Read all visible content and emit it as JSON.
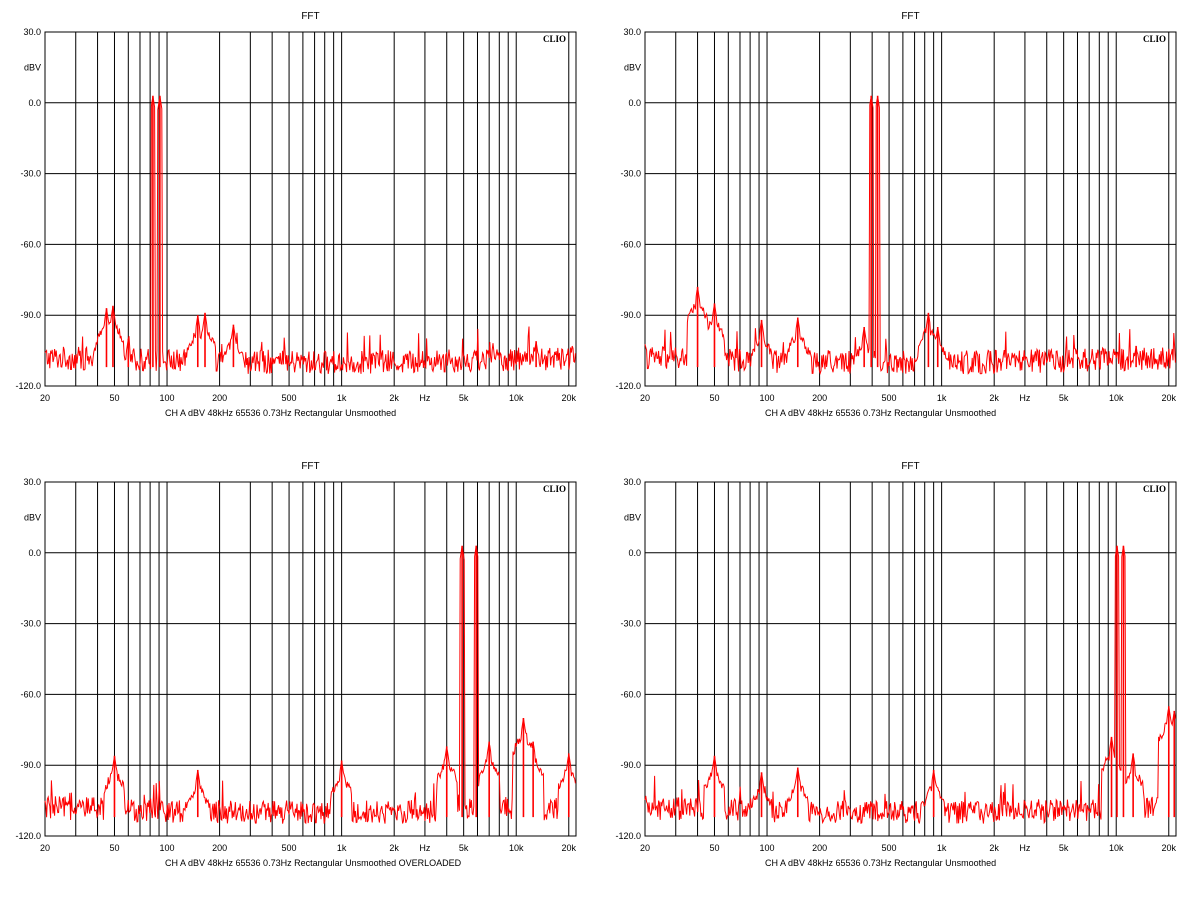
{
  "brand": "CLIO",
  "colors": {
    "trace": "#ff0000",
    "grid": "#000000",
    "background": "#ffffff"
  },
  "chart_data": [
    {
      "type": "line",
      "title": "FFT",
      "ylabel": "dBV",
      "x_unit_label": "Hz",
      "x_scale": "log",
      "xlim": [
        20,
        22000
      ],
      "ylim": [
        -120,
        30
      ],
      "y_ticks": [
        "30.0",
        "0.0",
        "-30.0",
        "-60.0",
        "-90.0",
        "-120.0"
      ],
      "x_ticks": [
        "20",
        "50",
        "100",
        "200",
        "500",
        "1k",
        "2k",
        "5k",
        "10k",
        "20k"
      ],
      "status": "CH A   dBV   48kHz   65536   0.73Hz   Rectangular   Unsmoothed",
      "series": [
        {
          "peaks": [
            [
              83,
              3
            ],
            [
              91,
              3
            ],
            [
              45,
              -87
            ],
            [
              49,
              -86
            ],
            [
              60,
              -100
            ],
            [
              150,
              -90
            ],
            [
              165,
              -89
            ],
            [
              240,
              -94
            ],
            [
              13000,
              -101
            ]
          ],
          "floor": -108
        }
      ]
    },
    {
      "type": "line",
      "title": "FFT",
      "ylabel": "dBV",
      "x_unit_label": "Hz",
      "x_scale": "log",
      "xlim": [
        20,
        22000
      ],
      "ylim": [
        -120,
        30
      ],
      "y_ticks": [
        "30.0",
        "0.0",
        "-30.0",
        "-60.0",
        "-90.0",
        "-120.0"
      ],
      "x_ticks": [
        "20",
        "50",
        "100",
        "200",
        "500",
        "1k",
        "2k",
        "5k",
        "10k",
        "20k"
      ],
      "status": "CH A   dBV   48kHz   65536   0.73Hz   Rectangular   Unsmoothed",
      "series": [
        {
          "peaks": [
            [
              395,
              3
            ],
            [
              430,
              3
            ],
            [
              40,
              -78
            ],
            [
              50,
              -85
            ],
            [
              93,
              -92
            ],
            [
              150,
              -91
            ],
            [
              360,
              -95
            ],
            [
              840,
              -89
            ],
            [
              950,
              -95
            ],
            [
              13000,
              -103
            ]
          ],
          "floor": -108
        }
      ]
    },
    {
      "type": "line",
      "title": "FFT",
      "ylabel": "dBV",
      "x_unit_label": "Hz",
      "x_scale": "log",
      "xlim": [
        20,
        22000
      ],
      "ylim": [
        -120,
        30
      ],
      "y_ticks": [
        "30.0",
        "0.0",
        "-30.0",
        "-60.0",
        "-90.0",
        "-120.0"
      ],
      "x_ticks": [
        "20",
        "50",
        "100",
        "200",
        "500",
        "1k",
        "2k",
        "5k",
        "10k",
        "20k"
      ],
      "status": "CH A   dBV   48kHz   65536   0.73Hz   Rectangular   Unsmoothed   OVERLOADED",
      "series": [
        {
          "peaks": [
            [
              4900,
              3
            ],
            [
              5900,
              3
            ],
            [
              50,
              -86
            ],
            [
              150,
              -92
            ],
            [
              1000,
              -88
            ],
            [
              4000,
              -82
            ],
            [
              7000,
              -80
            ],
            [
              11000,
              -70
            ],
            [
              12500,
              -80
            ],
            [
              20000,
              -85
            ]
          ],
          "floor": -108
        }
      ]
    },
    {
      "type": "line",
      "title": "FFT",
      "ylabel": "dBV",
      "x_unit_label": "Hz",
      "x_scale": "log",
      "xlim": [
        20,
        22000
      ],
      "ylim": [
        -120,
        30
      ],
      "y_ticks": [
        "30.0",
        "0.0",
        "-30.0",
        "-60.0",
        "-90.0",
        "-120.0"
      ],
      "x_ticks": [
        "20",
        "50",
        "100",
        "200",
        "500",
        "1k",
        "2k",
        "5k",
        "10k",
        "20k"
      ],
      "status": "CH A   dBV   48kHz   65536   0.73Hz   Rectangular   Unsmoothed",
      "series": [
        {
          "peaks": [
            [
              10100,
              3
            ],
            [
              11000,
              3
            ],
            [
              50,
              -86
            ],
            [
              93,
              -93
            ],
            [
              150,
              -91
            ],
            [
              900,
              -92
            ],
            [
              9400,
              -78
            ],
            [
              12500,
              -85
            ],
            [
              20000,
              -65
            ],
            [
              21500,
              -67
            ]
          ],
          "floor": -108
        }
      ]
    }
  ]
}
